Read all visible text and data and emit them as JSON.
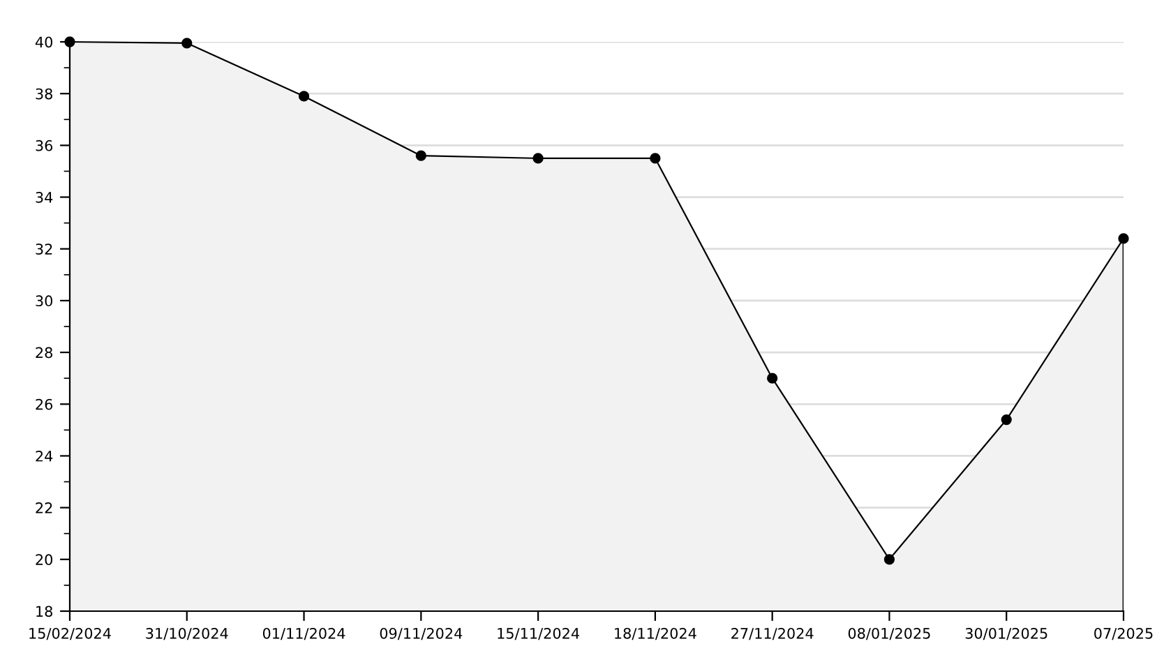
{
  "chart_data": {
    "type": "area",
    "categories": [
      "15/02/2024",
      "31/10/2024",
      "01/11/2024",
      "09/11/2024",
      "15/11/2024",
      "18/11/2024",
      "27/11/2024",
      "08/01/2025",
      "30/01/2025",
      "07/2025"
    ],
    "series": [
      {
        "color": "#000000",
        "values": [
          40,
          39.95,
          37.9,
          35.6,
          35.5,
          35.5,
          27.0,
          20.0,
          25.4,
          32.4
        ]
      }
    ],
    "ylim": [
      18,
      40
    ],
    "yticks": [
      18,
      {
        "value": 19,
        "label": null
      },
      20,
      {
        "value": 21,
        "label": null
      },
      22,
      {
        "value": 23,
        "label": null
      },
      24,
      {
        "value": 25,
        "label": null
      },
      26,
      {
        "value": 27,
        "label": null
      },
      28,
      {
        "value": 29,
        "label": null
      },
      30,
      {
        "value": 31,
        "label": null
      },
      32,
      {
        "value": 33,
        "label": null
      },
      34,
      {
        "value": 35,
        "label": null
      },
      36,
      {
        "value": 37,
        "label": null
      },
      38,
      {
        "value": 39,
        "label": null
      },
      40
    ],
    "grid": "y",
    "marker": "circle",
    "line_style": "solid",
    "legend": false
  }
}
